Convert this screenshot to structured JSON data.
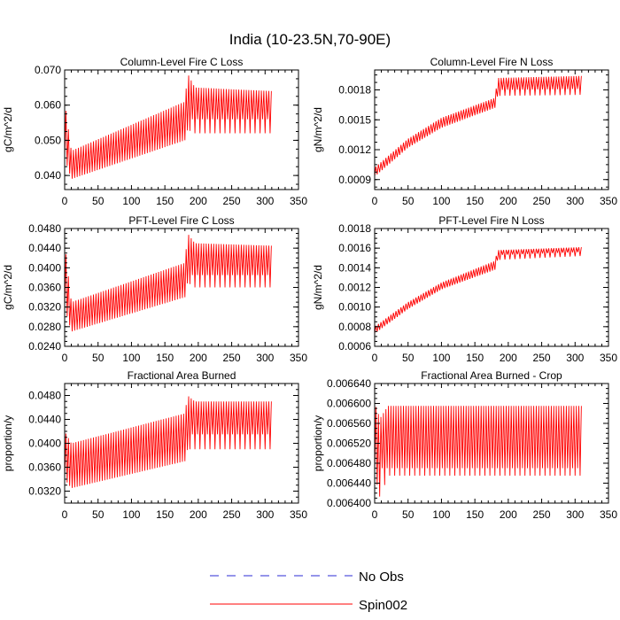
{
  "figure": {
    "title": "India (10-23.5N,70-90E)",
    "series_colors": {
      "obs": "#2b2bd6",
      "model": "#ff0000"
    }
  },
  "legend": {
    "entries": [
      {
        "label": "No Obs",
        "style": "dashed",
        "color": "#2b2bd6"
      },
      {
        "label": "Spin002",
        "style": "solid",
        "color": "#ff0000"
      }
    ]
  },
  "chart_data": [
    {
      "type": "line",
      "title": "Column-Level Fire C Loss",
      "ylabel": "gC/m^2/d",
      "xlim": [
        0,
        350
      ],
      "ylim": [
        0.036,
        0.07
      ],
      "xticks": [
        "0",
        "50",
        "100",
        "150",
        "200",
        "250",
        "300",
        "350"
      ],
      "yticks": [
        0.04,
        0.05,
        0.06,
        0.07
      ],
      "ytick_labels": [
        "0.040",
        "0.050",
        "0.060",
        "0.070"
      ],
      "series": [
        {
          "name": "Spin002",
          "x_range": [
            0,
            310
          ],
          "period": 7.5,
          "low": [
            [
              0,
              0.045
            ],
            [
              10,
              0.039
            ],
            [
              180,
              0.05
            ],
            [
              184,
              0.053
            ],
            [
              195,
              0.052
            ],
            [
              310,
              0.052
            ]
          ],
          "high": [
            [
              0,
              0.061
            ],
            [
              10,
              0.047
            ],
            [
              180,
              0.061
            ],
            [
              184,
              0.069
            ],
            [
              195,
              0.065
            ],
            [
              310,
              0.064
            ]
          ],
          "second_low": [
            [
              184,
              0.056
            ],
            [
              310,
              0.056
            ]
          ]
        }
      ]
    },
    {
      "type": "line",
      "title": "Column-Level Fire N Loss",
      "ylabel": "gN/m^2/d",
      "xlim": [
        0,
        350
      ],
      "ylim": [
        0.0008,
        0.002
      ],
      "xticks": [
        "0",
        "50",
        "100",
        "150",
        "200",
        "250",
        "300",
        "350"
      ],
      "yticks": [
        0.0009,
        0.0012,
        0.0015,
        0.0018
      ],
      "ytick_labels": [
        "0.0009",
        "0.0012",
        "0.0015",
        "0.0018"
      ],
      "series": [
        {
          "name": "Spin002",
          "x_range": [
            0,
            310
          ],
          "period": 7.5,
          "low": [
            [
              0,
              0.00093
            ],
            [
              50,
              0.00122
            ],
            [
              100,
              0.00142
            ],
            [
              180,
              0.00162
            ],
            [
              184,
              0.00174
            ],
            [
              310,
              0.00175
            ]
          ],
          "high": [
            [
              0,
              0.00102
            ],
            [
              50,
              0.00131
            ],
            [
              100,
              0.00152
            ],
            [
              180,
              0.00172
            ],
            [
              184,
              0.00192
            ],
            [
              310,
              0.00194
            ]
          ],
          "second_low": [
            [
              184,
              0.0018
            ],
            [
              310,
              0.00181
            ]
          ]
        }
      ]
    },
    {
      "type": "line",
      "title": "PFT-Level Fire C Loss",
      "ylabel": "gC/m^2/d",
      "xlim": [
        0,
        350
      ],
      "ylim": [
        0.024,
        0.048
      ],
      "xticks": [
        "0",
        "50",
        "100",
        "150",
        "200",
        "250",
        "300",
        "350"
      ],
      "yticks": [
        0.024,
        0.028,
        0.032,
        0.036,
        0.04,
        0.044,
        0.048
      ],
      "ytick_labels": [
        "0.0240",
        "0.0280",
        "0.0320",
        "0.0360",
        "0.0400",
        "0.0440",
        "0.0480"
      ],
      "series": [
        {
          "name": "Spin002",
          "x_range": [
            0,
            310
          ],
          "period": 7.5,
          "low": [
            [
              0,
              0.032
            ],
            [
              10,
              0.027
            ],
            [
              180,
              0.034
            ],
            [
              184,
              0.037
            ],
            [
              195,
              0.036
            ],
            [
              310,
              0.036
            ]
          ],
          "high": [
            [
              0,
              0.045
            ],
            [
              10,
              0.033
            ],
            [
              180,
              0.041
            ],
            [
              184,
              0.047
            ],
            [
              195,
              0.045
            ],
            [
              310,
              0.0445
            ]
          ],
          "second_low": [
            [
              184,
              0.0385
            ],
            [
              310,
              0.0385
            ]
          ]
        }
      ]
    },
    {
      "type": "line",
      "title": "PFT-Level Fire N Loss",
      "ylabel": "gN/m^2/d",
      "xlim": [
        0,
        350
      ],
      "ylim": [
        0.0006,
        0.0018
      ],
      "xticks": [
        "0",
        "50",
        "100",
        "150",
        "200",
        "250",
        "300",
        "350"
      ],
      "yticks": [
        0.0006,
        0.0008,
        0.001,
        0.0012,
        0.0014,
        0.0016,
        0.0018
      ],
      "ytick_labels": [
        "0.0006",
        "0.0008",
        "0.0010",
        "0.0012",
        "0.0014",
        "0.0016",
        "0.0018"
      ],
      "series": [
        {
          "name": "Spin002",
          "x_range": [
            0,
            310
          ],
          "period": 7.5,
          "low": [
            [
              0,
              0.00073
            ],
            [
              50,
              0.00098
            ],
            [
              100,
              0.00118
            ],
            [
              180,
              0.00138
            ],
            [
              184,
              0.00148
            ],
            [
              310,
              0.00152
            ]
          ],
          "high": [
            [
              0,
              0.0008
            ],
            [
              50,
              0.00105
            ],
            [
              100,
              0.00125
            ],
            [
              180,
              0.00147
            ],
            [
              184,
              0.00158
            ],
            [
              310,
              0.00161
            ]
          ],
          "second_low": [
            [
              184,
              0.00153
            ],
            [
              310,
              0.00156
            ]
          ]
        }
      ]
    },
    {
      "type": "line",
      "title": "Fractional Area Burned",
      "ylabel": "proportion/y",
      "xlim": [
        0,
        350
      ],
      "ylim": [
        0.03,
        0.05
      ],
      "xticks": [
        "0",
        "50",
        "100",
        "150",
        "200",
        "250",
        "300",
        "350"
      ],
      "yticks": [
        0.032,
        0.036,
        0.04,
        0.044,
        0.048
      ],
      "ytick_labels": [
        "0.0320",
        "0.0360",
        "0.0400",
        "0.0440",
        "0.0480"
      ],
      "series": [
        {
          "name": "Spin002",
          "x_range": [
            0,
            310
          ],
          "period": 7.5,
          "low": [
            [
              0,
              0.034
            ],
            [
              10,
              0.0325
            ],
            [
              180,
              0.037
            ],
            [
              184,
              0.039
            ],
            [
              310,
              0.039
            ]
          ],
          "high": [
            [
              0,
              0.042
            ],
            [
              10,
              0.04
            ],
            [
              180,
              0.045
            ],
            [
              184,
              0.048
            ],
            [
              195,
              0.047
            ],
            [
              310,
              0.047
            ]
          ],
          "second_low": [
            [
              184,
              0.0415
            ],
            [
              310,
              0.0415
            ]
          ]
        }
      ]
    },
    {
      "type": "line",
      "title": "Fractional Area Burned - Crop",
      "ylabel": "proportion/y",
      "xlim": [
        0,
        350
      ],
      "ylim": [
        0.0064,
        0.00664
      ],
      "xticks": [
        "0",
        "50",
        "100",
        "150",
        "200",
        "250",
        "300",
        "350"
      ],
      "yticks": [
        0.0064,
        0.00644,
        0.00648,
        0.00652,
        0.00656,
        0.0066,
        0.00664
      ],
      "ytick_labels": [
        "0.006400",
        "0.006440",
        "0.006480",
        "0.006520",
        "0.006560",
        "0.006600",
        "0.006640"
      ],
      "series": [
        {
          "name": "Spin002",
          "x_range": [
            0,
            310
          ],
          "period": 7.5,
          "low": [
            [
              0,
              0.00646
            ],
            [
              8,
              0.00641
            ],
            [
              20,
              0.006455
            ],
            [
              310,
              0.006455
            ]
          ],
          "high": [
            [
              0,
              0.0066
            ],
            [
              8,
              0.00657
            ],
            [
              20,
              0.006595
            ],
            [
              310,
              0.006595
            ]
          ],
          "second_low": [
            [
              10,
              0.00647
            ],
            [
              310,
              0.00647
            ]
          ]
        }
      ]
    }
  ]
}
